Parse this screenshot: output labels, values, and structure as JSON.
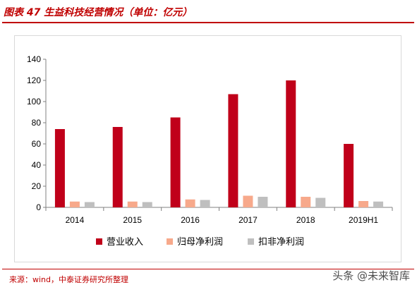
{
  "figure_title": "图表 47 生益科技经营情况（单位：亿元）",
  "source": "来源：wind，中泰证券研究所整理",
  "watermark": "头条 @未来智库",
  "chart_data": {
    "type": "bar",
    "title": "",
    "xlabel": "",
    "ylabel": "",
    "categories": [
      "2014",
      "2015",
      "2016",
      "2017",
      "2018",
      "2019H1"
    ],
    "ylim": [
      0,
      140
    ],
    "yticks": [
      0,
      20,
      40,
      60,
      80,
      100,
      120,
      140
    ],
    "grid": false,
    "legend_position": "bottom",
    "series": [
      {
        "name": "营业收入",
        "color": "#c0001a",
        "values": [
          74,
          76,
          85,
          107,
          120,
          60
        ]
      },
      {
        "name": "归母净利润",
        "color": "#f7a98b",
        "values": [
          5.5,
          5.5,
          7.5,
          11,
          10,
          6
        ]
      },
      {
        "name": "扣非净利润",
        "color": "#bfbfbf",
        "values": [
          5,
          5,
          7,
          10,
          9,
          5.5
        ]
      }
    ]
  }
}
